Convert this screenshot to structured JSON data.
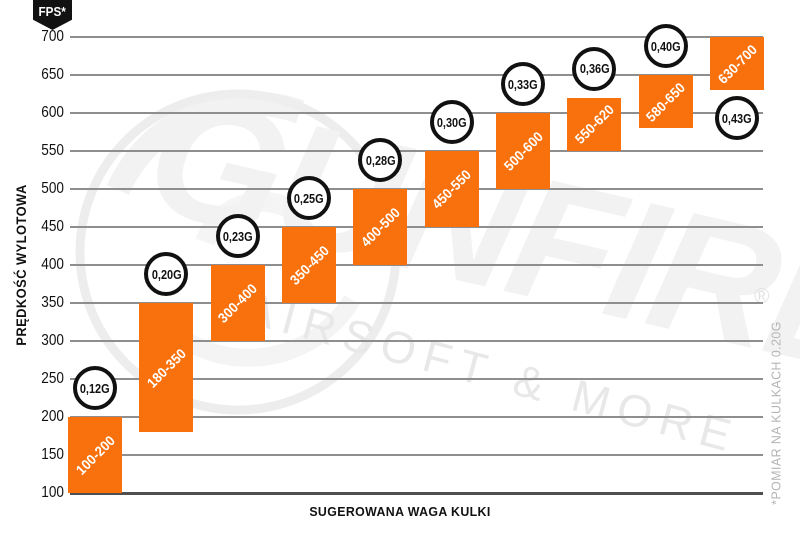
{
  "colors": {
    "bar_orange": "#F8710D",
    "grid_gray": "#8E8E8E",
    "axis_dark": "#4F4F4F",
    "text_black": "#111111",
    "badge_black": "#121212",
    "watermark_gray": "#EFEFEF",
    "footnote_gray": "#B5B5B5"
  },
  "axes": {
    "y_label": "PRĘDKOŚĆ WYLOTOWA",
    "x_label": "SUGEROWANA WAGA KULKI",
    "unit_badge": "FPS*",
    "footnote": "*POMIAR NA KULKACH 0.20G"
  },
  "watermark": {
    "brand": "GUNFIRE",
    "tagline": "AIRSOFT & MORE",
    "registered": "®"
  },
  "chart_data": {
    "type": "bar",
    "subtype": "floating_range_columns",
    "title": "",
    "xlabel": "SUGEROWANA WAGA KULKI",
    "ylabel": "PRĘDKOŚĆ WYLOTOWA",
    "y_unit": "FPS",
    "ylim": [
      100,
      700
    ],
    "y_ticks": [
      700,
      650,
      600,
      550,
      500,
      450,
      400,
      350,
      300,
      250,
      200,
      150,
      100
    ],
    "grid": true,
    "legend": false,
    "bar_color": "#F8710D",
    "bars": [
      {
        "weight_label": "0,12G",
        "range_label": "100-200",
        "fps_min": 100,
        "fps_max": 200,
        "bubble": "above"
      },
      {
        "weight_label": "0,20G",
        "range_label": "180-350",
        "fps_min": 180,
        "fps_max": 350,
        "bubble": "above"
      },
      {
        "weight_label": "0,23G",
        "range_label": "300-400",
        "fps_min": 300,
        "fps_max": 400,
        "bubble": "above"
      },
      {
        "weight_label": "0,25G",
        "range_label": "350-450",
        "fps_min": 350,
        "fps_max": 450,
        "bubble": "above"
      },
      {
        "weight_label": "0,28G",
        "range_label": "400-500",
        "fps_min": 400,
        "fps_max": 500,
        "bubble": "above"
      },
      {
        "weight_label": "0,30G",
        "range_label": "450-550",
        "fps_min": 450,
        "fps_max": 550,
        "bubble": "above"
      },
      {
        "weight_label": "0,33G",
        "range_label": "500-600",
        "fps_min": 500,
        "fps_max": 600,
        "bubble": "above"
      },
      {
        "weight_label": "0,36G",
        "range_label": "550-620",
        "fps_min": 550,
        "fps_max": 620,
        "bubble": "above"
      },
      {
        "weight_label": "0,40G",
        "range_label": "580-650",
        "fps_min": 580,
        "fps_max": 650,
        "bubble": "above"
      },
      {
        "weight_label": "0,43G",
        "range_label": "630-700",
        "fps_min": 630,
        "fps_max": 700,
        "bubble": "below"
      }
    ],
    "footnote": "*POMIAR NA KULKACH 0.20G"
  }
}
